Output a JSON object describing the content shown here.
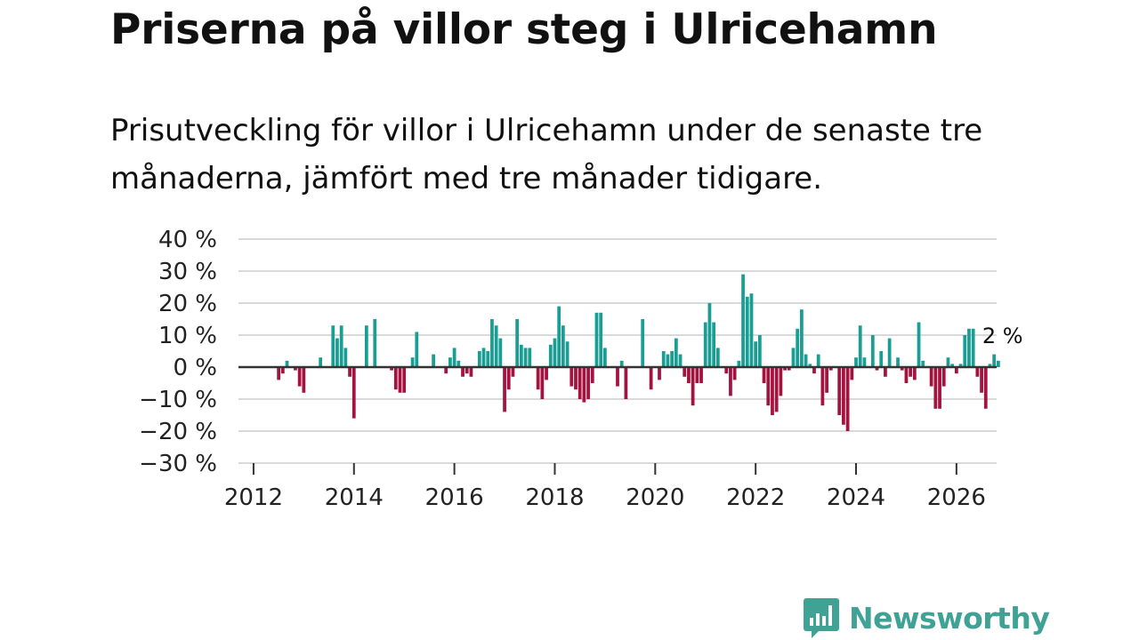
{
  "title": "Priserna på villor steg i Ulricehamn",
  "subtitle": "Prisutveckling för villor i Ulricehamn under de senaste tre månaderna, jämfört med tre månader tidigare.",
  "brand": {
    "name": "Newsworthy",
    "color": "#3fa295"
  },
  "colors": {
    "positive": "#1a9e93",
    "negative": "#a6123f",
    "grid": "#d9d9d9",
    "zero_line": "#333333"
  },
  "chart_data": {
    "type": "bar",
    "title": "",
    "xlabel": "",
    "ylabel": "",
    "ylim": [
      -30,
      40
    ],
    "xlim": [
      2011.7,
      2026.8
    ],
    "y_ticks": [
      40,
      30,
      20,
      10,
      0,
      -10,
      -20,
      -30
    ],
    "y_tick_labels": [
      "40 %",
      "30 %",
      "20 %",
      "10 %",
      "0 %",
      "−10 %",
      "−20 %",
      "−30 %"
    ],
    "x_ticks": [
      2012,
      2014,
      2016,
      2018,
      2020,
      2022,
      2024,
      2026
    ],
    "x_tick_labels": [
      "2012",
      "2014",
      "2016",
      "2018",
      "2020",
      "2022",
      "2024",
      "2026"
    ],
    "annotation": "2 %",
    "bar_width_months": 0.8,
    "series": [
      {
        "name": "Prisutveckling",
        "x_start": 2012.5,
        "step": 0.08333333,
        "values": [
          -4,
          -2,
          2,
          0,
          -1,
          -6,
          -8,
          0,
          0,
          0,
          3,
          0,
          0,
          13,
          9,
          13,
          6,
          -3,
          -16,
          0,
          0,
          13,
          0,
          15,
          0,
          0,
          0,
          -1,
          -7,
          -8,
          -8,
          0,
          3,
          11,
          0,
          0,
          0,
          4,
          0,
          0,
          -2,
          3,
          6,
          2,
          -3,
          -2,
          -3,
          0,
          5,
          6,
          5,
          15,
          13,
          9,
          -14,
          -7,
          -3,
          15,
          7,
          6,
          6,
          0,
          -7,
          -10,
          -4,
          7,
          9,
          19,
          13,
          8,
          -6,
          -7,
          -10,
          -11,
          -10,
          -5,
          17,
          17,
          6,
          0,
          0,
          -6,
          2,
          -10,
          0,
          0,
          0,
          15,
          0,
          -7,
          0,
          -4,
          5,
          4,
          5,
          9,
          4,
          -3,
          -5,
          -12,
          -5,
          -5,
          14,
          20,
          14,
          6,
          0,
          -2,
          -9,
          -4,
          2,
          29,
          22,
          23,
          8,
          10,
          -5,
          -12,
          -15,
          -14,
          -9,
          -1,
          -1,
          6,
          12,
          18,
          4,
          1,
          -2,
          4,
          -12,
          -8,
          -1,
          0,
          -15,
          -18,
          -20,
          -4,
          3,
          13,
          3,
          0,
          10,
          -1,
          5,
          -3,
          9,
          0,
          3,
          -1,
          -5,
          -3,
          -4,
          14,
          2,
          0,
          -6,
          -13,
          -13,
          -6,
          3,
          1,
          -2,
          1,
          10,
          12,
          12,
          -3,
          -8,
          -13,
          1,
          4,
          2
        ]
      }
    ]
  }
}
